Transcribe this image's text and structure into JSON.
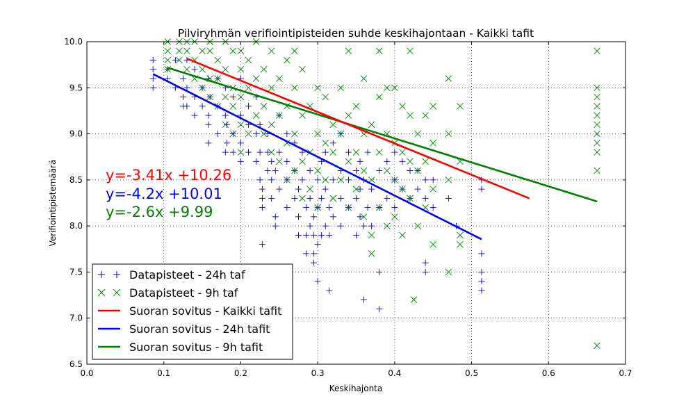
{
  "chart_data": {
    "type": "scatter",
    "title": "Pilviryhmän verifiointipisteiden suhde keskihajontaan - Kaikki tafit",
    "xlabel": "Keskihajonta",
    "ylabel": "Verifiointipistemäärä",
    "xlim": [
      0.0,
      0.7
    ],
    "ylim": [
      6.5,
      10.0
    ],
    "xticks": [
      "0.0",
      "0.1",
      "0.2",
      "0.3",
      "0.4",
      "0.5",
      "0.6",
      "0.7"
    ],
    "yticks": [
      "6.5",
      "7.0",
      "7.5",
      "8.0",
      "8.5",
      "9.0",
      "9.5",
      "10.0"
    ],
    "grid": true,
    "legend_position": "lower-left",
    "series": [
      {
        "name": "Datapisteet - 24h taf",
        "kind": "scatter",
        "marker": "plus",
        "color": "#0000bf",
        "points": [
          [
            0.086,
            9.5
          ],
          [
            0.086,
            9.6
          ],
          [
            0.086,
            9.7
          ],
          [
            0.086,
            9.8
          ],
          [
            0.105,
            9.6
          ],
          [
            0.105,
            9.7
          ],
          [
            0.115,
            9.5
          ],
          [
            0.115,
            9.8
          ],
          [
            0.125,
            9.3
          ],
          [
            0.125,
            9.4
          ],
          [
            0.125,
            9.6
          ],
          [
            0.13,
            9.3
          ],
          [
            0.13,
            9.5
          ],
          [
            0.13,
            9.8
          ],
          [
            0.14,
            9.2
          ],
          [
            0.14,
            9.4
          ],
          [
            0.14,
            9.7
          ],
          [
            0.15,
            9.3
          ],
          [
            0.15,
            9.5
          ],
          [
            0.158,
            8.9
          ],
          [
            0.158,
            9.1
          ],
          [
            0.158,
            9.2
          ],
          [
            0.158,
            9.6
          ],
          [
            0.16,
            9.4
          ],
          [
            0.17,
            9.0
          ],
          [
            0.17,
            9.3
          ],
          [
            0.17,
            9.6
          ],
          [
            0.18,
            8.8
          ],
          [
            0.18,
            9.2
          ],
          [
            0.18,
            9.5
          ],
          [
            0.182,
            8.9
          ],
          [
            0.182,
            9.1
          ],
          [
            0.19,
            8.8
          ],
          [
            0.19,
            9.0
          ],
          [
            0.19,
            9.4
          ],
          [
            0.2,
            8.7
          ],
          [
            0.2,
            8.9
          ],
          [
            0.2,
            9.2
          ],
          [
            0.2,
            9.6
          ],
          [
            0.21,
            8.8
          ],
          [
            0.21,
            9.1
          ],
          [
            0.21,
            9.3
          ],
          [
            0.22,
            8.7
          ],
          [
            0.22,
            9.0
          ],
          [
            0.22,
            9.4
          ],
          [
            0.225,
            8.5
          ],
          [
            0.225,
            8.8
          ],
          [
            0.225,
            9.1
          ],
          [
            0.228,
            7.8
          ],
          [
            0.228,
            8.2
          ],
          [
            0.228,
            8.3
          ],
          [
            0.228,
            8.4
          ],
          [
            0.235,
            8.6
          ],
          [
            0.235,
            8.8
          ],
          [
            0.235,
            9.0
          ],
          [
            0.24,
            8.3
          ],
          [
            0.24,
            8.5
          ],
          [
            0.24,
            8.7
          ],
          [
            0.245,
            8.0
          ],
          [
            0.245,
            8.1
          ],
          [
            0.245,
            8.6
          ],
          [
            0.25,
            8.4
          ],
          [
            0.25,
            8.8
          ],
          [
            0.25,
            9.2
          ],
          [
            0.26,
            8.2
          ],
          [
            0.26,
            8.5
          ],
          [
            0.26,
            8.7
          ],
          [
            0.26,
            9.0
          ],
          [
            0.27,
            8.3
          ],
          [
            0.27,
            8.6
          ],
          [
            0.27,
            8.9
          ],
          [
            0.275,
            7.9
          ],
          [
            0.275,
            8.1
          ],
          [
            0.275,
            8.4
          ],
          [
            0.28,
            8.5
          ],
          [
            0.28,
            8.8
          ],
          [
            0.285,
            7.7
          ],
          [
            0.285,
            7.9
          ],
          [
            0.285,
            8.2
          ],
          [
            0.29,
            8.0
          ],
          [
            0.29,
            8.3
          ],
          [
            0.29,
            8.6
          ],
          [
            0.295,
            7.6
          ],
          [
            0.295,
            7.7
          ],
          [
            0.295,
            7.9
          ],
          [
            0.295,
            8.1
          ],
          [
            0.3,
            7.4
          ],
          [
            0.3,
            7.8
          ],
          [
            0.3,
            8.2
          ],
          [
            0.3,
            8.5
          ],
          [
            0.305,
            7.9
          ],
          [
            0.305,
            8.3
          ],
          [
            0.305,
            8.7
          ],
          [
            0.31,
            8.0
          ],
          [
            0.31,
            8.4
          ],
          [
            0.31,
            8.8
          ],
          [
            0.315,
            7.3
          ],
          [
            0.315,
            7.9
          ],
          [
            0.315,
            8.2
          ],
          [
            0.32,
            8.1
          ],
          [
            0.32,
            8.5
          ],
          [
            0.32,
            8.9
          ],
          [
            0.33,
            8.0
          ],
          [
            0.33,
            8.3
          ],
          [
            0.33,
            8.6
          ],
          [
            0.33,
            9.0
          ],
          [
            0.34,
            8.2
          ],
          [
            0.34,
            8.5
          ],
          [
            0.34,
            8.8
          ],
          [
            0.35,
            7.9
          ],
          [
            0.35,
            8.3
          ],
          [
            0.35,
            8.6
          ],
          [
            0.355,
            8.1
          ],
          [
            0.355,
            8.4
          ],
          [
            0.355,
            8.7
          ],
          [
            0.36,
            7.2
          ],
          [
            0.36,
            8.0
          ],
          [
            0.36,
            8.5
          ],
          [
            0.365,
            8.2
          ],
          [
            0.365,
            8.8
          ],
          [
            0.37,
            8.0
          ],
          [
            0.37,
            8.4
          ],
          [
            0.38,
            7.1
          ],
          [
            0.38,
            7.5
          ],
          [
            0.38,
            8.2
          ],
          [
            0.38,
            8.6
          ],
          [
            0.39,
            8.3
          ],
          [
            0.39,
            8.7
          ],
          [
            0.4,
            8.2
          ],
          [
            0.4,
            8.5
          ],
          [
            0.4,
            8.8
          ],
          [
            0.41,
            8.4
          ],
          [
            0.41,
            8.7
          ],
          [
            0.42,
            8.3
          ],
          [
            0.42,
            8.6
          ],
          [
            0.43,
            8.4
          ],
          [
            0.43,
            8.6
          ],
          [
            0.44,
            7.5
          ],
          [
            0.44,
            7.6
          ],
          [
            0.44,
            8.3
          ],
          [
            0.44,
            8.5
          ],
          [
            0.45,
            8.2
          ],
          [
            0.45,
            8.5
          ],
          [
            0.47,
            8.3
          ],
          [
            0.48,
            8.0
          ],
          [
            0.513,
            7.3
          ],
          [
            0.513,
            7.4
          ],
          [
            0.513,
            7.5
          ],
          [
            0.513,
            7.7
          ],
          [
            0.513,
            8.4
          ],
          [
            0.513,
            8.5
          ]
        ]
      },
      {
        "name": "Datapisteet - 9h taf",
        "kind": "scatter",
        "marker": "x",
        "color": "#008000",
        "points": [
          [
            0.105,
            9.7
          ],
          [
            0.105,
            9.8
          ],
          [
            0.105,
            9.9
          ],
          [
            0.105,
            10.0
          ],
          [
            0.12,
            9.8
          ],
          [
            0.12,
            9.9
          ],
          [
            0.12,
            10.0
          ],
          [
            0.13,
            9.7
          ],
          [
            0.13,
            9.9
          ],
          [
            0.13,
            10.0
          ],
          [
            0.14,
            9.6
          ],
          [
            0.14,
            9.8
          ],
          [
            0.14,
            10.0
          ],
          [
            0.15,
            9.5
          ],
          [
            0.15,
            9.7
          ],
          [
            0.15,
            9.9
          ],
          [
            0.16,
            9.4
          ],
          [
            0.16,
            9.6
          ],
          [
            0.16,
            9.9
          ],
          [
            0.16,
            10.0
          ],
          [
            0.17,
            9.3
          ],
          [
            0.17,
            9.6
          ],
          [
            0.17,
            9.8
          ],
          [
            0.18,
            9.1
          ],
          [
            0.18,
            9.4
          ],
          [
            0.18,
            9.7
          ],
          [
            0.18,
            10.0
          ],
          [
            0.19,
            9.0
          ],
          [
            0.19,
            9.3
          ],
          [
            0.19,
            9.5
          ],
          [
            0.19,
            9.9
          ],
          [
            0.2,
            8.8
          ],
          [
            0.2,
            9.1
          ],
          [
            0.2,
            9.4
          ],
          [
            0.2,
            9.7
          ],
          [
            0.2,
            9.9
          ],
          [
            0.21,
            9.0
          ],
          [
            0.21,
            9.5
          ],
          [
            0.21,
            9.8
          ],
          [
            0.22,
            9.2
          ],
          [
            0.22,
            9.6
          ],
          [
            0.22,
            10.0
          ],
          [
            0.23,
            9.0
          ],
          [
            0.23,
            9.3
          ],
          [
            0.23,
            9.7
          ],
          [
            0.24,
            8.8
          ],
          [
            0.24,
            9.1
          ],
          [
            0.24,
            9.5
          ],
          [
            0.24,
            9.9
          ],
          [
            0.25,
            8.7
          ],
          [
            0.25,
            9.2
          ],
          [
            0.25,
            9.6
          ],
          [
            0.26,
            8.5
          ],
          [
            0.26,
            8.9
          ],
          [
            0.26,
            9.3
          ],
          [
            0.26,
            9.8
          ],
          [
            0.27,
            8.6
          ],
          [
            0.27,
            9.0
          ],
          [
            0.27,
            9.5
          ],
          [
            0.27,
            9.9
          ],
          [
            0.28,
            8.3
          ],
          [
            0.28,
            8.7
          ],
          [
            0.28,
            9.2
          ],
          [
            0.28,
            9.7
          ],
          [
            0.29,
            8.4
          ],
          [
            0.29,
            8.8
          ],
          [
            0.29,
            9.3
          ],
          [
            0.3,
            8.2
          ],
          [
            0.3,
            8.6
          ],
          [
            0.3,
            9.0
          ],
          [
            0.3,
            9.5
          ],
          [
            0.31,
            8.5
          ],
          [
            0.31,
            8.9
          ],
          [
            0.31,
            9.4
          ],
          [
            0.32,
            8.3
          ],
          [
            0.32,
            8.8
          ],
          [
            0.32,
            9.1
          ],
          [
            0.33,
            8.5
          ],
          [
            0.33,
            9.0
          ],
          [
            0.33,
            9.5
          ],
          [
            0.34,
            8.2
          ],
          [
            0.34,
            8.7
          ],
          [
            0.34,
            9.2
          ],
          [
            0.34,
            9.9
          ],
          [
            0.35,
            8.4
          ],
          [
            0.35,
            8.8
          ],
          [
            0.35,
            9.3
          ],
          [
            0.36,
            8.1
          ],
          [
            0.36,
            8.6
          ],
          [
            0.36,
            9.0
          ],
          [
            0.36,
            9.6
          ],
          [
            0.37,
            7.9
          ],
          [
            0.37,
            7.7
          ],
          [
            0.37,
            8.5
          ],
          [
            0.37,
            9.1
          ],
          [
            0.38,
            8.2
          ],
          [
            0.38,
            8.8
          ],
          [
            0.38,
            9.4
          ],
          [
            0.38,
            9.9
          ],
          [
            0.39,
            8.0
          ],
          [
            0.39,
            8.6
          ],
          [
            0.39,
            9.0
          ],
          [
            0.39,
            9.5
          ],
          [
            0.4,
            8.1
          ],
          [
            0.4,
            8.5
          ],
          [
            0.4,
            8.9
          ],
          [
            0.4,
            9.5
          ],
          [
            0.41,
            7.9
          ],
          [
            0.41,
            8.4
          ],
          [
            0.41,
            8.8
          ],
          [
            0.41,
            9.3
          ],
          [
            0.42,
            8.3
          ],
          [
            0.42,
            8.7
          ],
          [
            0.42,
            9.2
          ],
          [
            0.42,
            9.9
          ],
          [
            0.425,
            7.2
          ],
          [
            0.43,
            8.0
          ],
          [
            0.43,
            8.6
          ],
          [
            0.43,
            9.0
          ],
          [
            0.44,
            8.2
          ],
          [
            0.44,
            8.7
          ],
          [
            0.44,
            9.2
          ],
          [
            0.45,
            7.8
          ],
          [
            0.45,
            8.4
          ],
          [
            0.45,
            8.9
          ],
          [
            0.45,
            9.3
          ],
          [
            0.47,
            7.5
          ],
          [
            0.47,
            8.5
          ],
          [
            0.47,
            9.0
          ],
          [
            0.47,
            9.6
          ],
          [
            0.485,
            7.8
          ],
          [
            0.485,
            7.9
          ],
          [
            0.485,
            8.7
          ],
          [
            0.485,
            9.3
          ],
          [
            0.663,
            6.7
          ],
          [
            0.663,
            8.6
          ],
          [
            0.663,
            8.8
          ],
          [
            0.663,
            8.9
          ],
          [
            0.663,
            9.0
          ],
          [
            0.663,
            9.1
          ],
          [
            0.663,
            9.2
          ],
          [
            0.663,
            9.3
          ],
          [
            0.663,
            9.4
          ],
          [
            0.663,
            9.5
          ],
          [
            0.663,
            9.9
          ]
        ]
      },
      {
        "name": "Suoran sovitus - Kaikki tafit",
        "kind": "line",
        "color": "#ff0000",
        "equation": "y=-3.41x +10.26",
        "x_range": [
          0.13,
          0.575
        ],
        "slope": -3.41,
        "intercept": 10.26
      },
      {
        "name": "Suoran sovitus - 24h tafit",
        "kind": "line",
        "color": "#0000ff",
        "equation": "y=-4.2x +10.01",
        "x_range": [
          0.086,
          0.513
        ],
        "slope": -4.2,
        "intercept": 10.01
      },
      {
        "name": "Suoran sovitus - 9h tafit",
        "kind": "line",
        "color": "#008000",
        "equation": "y=-2.6x +9.99",
        "x_range": [
          0.105,
          0.663
        ],
        "slope": -2.6,
        "intercept": 9.99
      }
    ]
  }
}
